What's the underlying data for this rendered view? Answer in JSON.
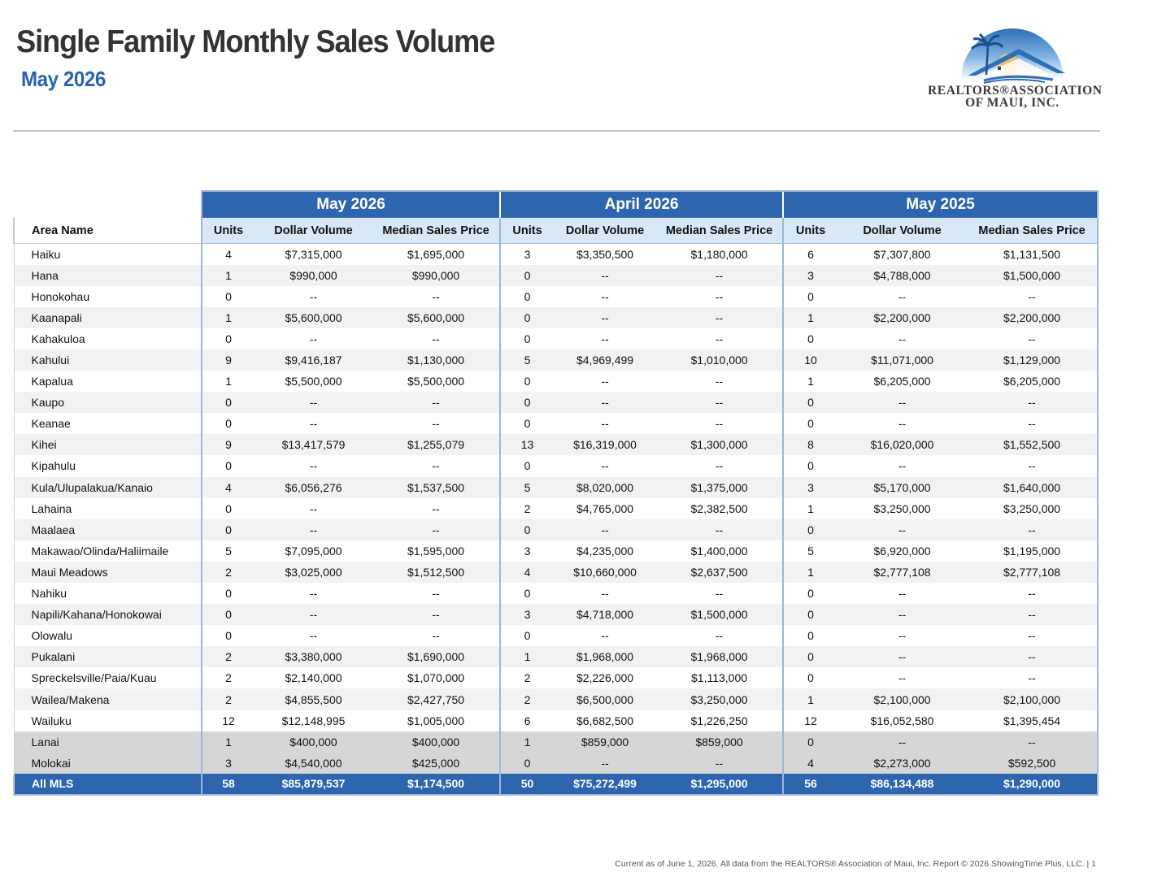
{
  "header": {
    "title": "Single Family Monthly Sales Volume",
    "subtitle": "May 2026"
  },
  "logo": {
    "line1": "REALTORS®ASSOCIATION",
    "line2": "OF MAUI, INC.",
    "colors": {
      "sky": "#2f6fb5",
      "sun": "#f4c26b",
      "roof": "#2f6fb5"
    }
  },
  "table": {
    "area_header": "Area Name",
    "groups": [
      "May 2026",
      "April 2026",
      "May 2025"
    ],
    "columns": [
      "Units",
      "Dollar Volume",
      "Median Sales Price"
    ],
    "rows": [
      [
        "Haiku",
        "4",
        "$7,315,000",
        "$1,695,000",
        "3",
        "$3,350,500",
        "$1,180,000",
        "6",
        "$7,307,800",
        "$1,131,500"
      ],
      [
        "Hana",
        "1",
        "$990,000",
        "$990,000",
        "0",
        "--",
        "--",
        "3",
        "$4,788,000",
        "$1,500,000"
      ],
      [
        "Honokohau",
        "0",
        "--",
        "--",
        "0",
        "--",
        "--",
        "0",
        "--",
        "--"
      ],
      [
        "Kaanapali",
        "1",
        "$5,600,000",
        "$5,600,000",
        "0",
        "--",
        "--",
        "1",
        "$2,200,000",
        "$2,200,000"
      ],
      [
        "Kahakuloa",
        "0",
        "--",
        "--",
        "0",
        "--",
        "--",
        "0",
        "--",
        "--"
      ],
      [
        "Kahului",
        "9",
        "$9,416,187",
        "$1,130,000",
        "5",
        "$4,969,499",
        "$1,010,000",
        "10",
        "$11,071,000",
        "$1,129,000"
      ],
      [
        "Kapalua",
        "1",
        "$5,500,000",
        "$5,500,000",
        "0",
        "--",
        "--",
        "1",
        "$6,205,000",
        "$6,205,000"
      ],
      [
        "Kaupo",
        "0",
        "--",
        "--",
        "0",
        "--",
        "--",
        "0",
        "--",
        "--"
      ],
      [
        "Keanae",
        "0",
        "--",
        "--",
        "0",
        "--",
        "--",
        "0",
        "--",
        "--"
      ],
      [
        "Kihei",
        "9",
        "$13,417,579",
        "$1,255,079",
        "13",
        "$16,319,000",
        "$1,300,000",
        "8",
        "$16,020,000",
        "$1,552,500"
      ],
      [
        "Kipahulu",
        "0",
        "--",
        "--",
        "0",
        "--",
        "--",
        "0",
        "--",
        "--"
      ],
      [
        "Kula/Ulupalakua/Kanaio",
        "4",
        "$6,056,276",
        "$1,537,500",
        "5",
        "$8,020,000",
        "$1,375,000",
        "3",
        "$5,170,000",
        "$1,640,000"
      ],
      [
        "Lahaina",
        "0",
        "--",
        "--",
        "2",
        "$4,765,000",
        "$2,382,500",
        "1",
        "$3,250,000",
        "$3,250,000"
      ],
      [
        "Maalaea",
        "0",
        "--",
        "--",
        "0",
        "--",
        "--",
        "0",
        "--",
        "--"
      ],
      [
        "Makawao/Olinda/Haliimaile",
        "5",
        "$7,095,000",
        "$1,595,000",
        "3",
        "$4,235,000",
        "$1,400,000",
        "5",
        "$6,920,000",
        "$1,195,000"
      ],
      [
        "Maui Meadows",
        "2",
        "$3,025,000",
        "$1,512,500",
        "4",
        "$10,660,000",
        "$2,637,500",
        "1",
        "$2,777,108",
        "$2,777,108"
      ],
      [
        "Nahiku",
        "0",
        "--",
        "--",
        "0",
        "--",
        "--",
        "0",
        "--",
        "--"
      ],
      [
        "Napili/Kahana/Honokowai",
        "0",
        "--",
        "--",
        "3",
        "$4,718,000",
        "$1,500,000",
        "0",
        "--",
        "--"
      ],
      [
        "Olowalu",
        "0",
        "--",
        "--",
        "0",
        "--",
        "--",
        "0",
        "--",
        "--"
      ],
      [
        "Pukalani",
        "2",
        "$3,380,000",
        "$1,690,000",
        "1",
        "$1,968,000",
        "$1,968,000",
        "0",
        "--",
        "--"
      ],
      [
        "Spreckelsville/Paia/Kuau",
        "2",
        "$2,140,000",
        "$1,070,000",
        "2",
        "$2,226,000",
        "$1,113,000",
        "0",
        "--",
        "--"
      ],
      [
        "Wailea/Makena",
        "2",
        "$4,855,500",
        "$2,427,750",
        "2",
        "$6,500,000",
        "$3,250,000",
        "1",
        "$2,100,000",
        "$2,100,000"
      ],
      [
        "Wailuku",
        "12",
        "$12,148,995",
        "$1,005,000",
        "6",
        "$6,682,500",
        "$1,226,250",
        "12",
        "$16,052,580",
        "$1,395,454"
      ]
    ],
    "island_rows": [
      [
        "Lanai",
        "1",
        "$400,000",
        "$400,000",
        "1",
        "$859,000",
        "$859,000",
        "0",
        "--",
        "--"
      ],
      [
        "Molokai",
        "3",
        "$4,540,000",
        "$425,000",
        "0",
        "--",
        "--",
        "4",
        "$2,273,000",
        "$592,500"
      ]
    ],
    "total_row": [
      "All MLS",
      "58",
      "$85,879,537",
      "$1,174,500",
      "50",
      "$75,272,499",
      "$1,295,000",
      "56",
      "$86,134,488",
      "$1,290,000"
    ]
  },
  "footer": "Current as of June 1, 2026. All data from the REALTORS® Association of Maui, Inc. Report © 2026 ShowingTime Plus, LLC.  |  1"
}
